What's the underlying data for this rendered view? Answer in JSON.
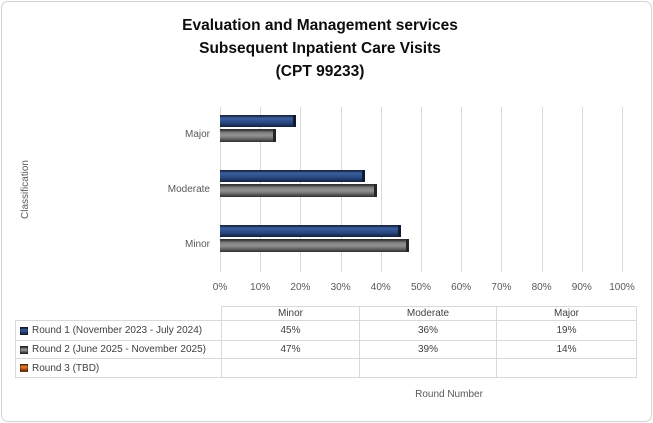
{
  "frame": {
    "background": "#ffffff",
    "border_color": "#d3d3d3"
  },
  "title": "Evaluation and Management services\nSubsequent Inpatient Care Visits\n(CPT 99233)",
  "chart_data": {
    "type": "bar",
    "orientation": "horizontal",
    "title": "Evaluation and Management services Subsequent Inpatient Care Visits (CPT 99233)",
    "xlabel": "Round Number",
    "ylabel": "Classification",
    "categories": [
      "Minor",
      "Moderate",
      "Major"
    ],
    "categories_top_to_bottom": [
      "Major",
      "Moderate",
      "Minor"
    ],
    "series": [
      {
        "name": "Round 1 (November 2023 - July 2024)",
        "color": "#2a4a85",
        "values": [
          45,
          36,
          19
        ]
      },
      {
        "name": "Round 2 (June 2025 - November 2025)",
        "color": "#7f7f7f",
        "values": [
          47,
          39,
          14
        ]
      },
      {
        "name": "Round 3 (TBD)",
        "color": "#c55a11",
        "values": [
          null,
          null,
          null
        ]
      }
    ],
    "value_suffix": "%",
    "xlim": [
      0,
      100
    ],
    "x_ticks": [
      "0%",
      "10%",
      "20%",
      "30%",
      "40%",
      "50%",
      "60%",
      "70%",
      "80%",
      "90%",
      "100%"
    ],
    "grid": true,
    "gridline_color": "#d9d9d9",
    "legend_position": "data-table-left-column",
    "data_table": {
      "header": [
        "",
        "Minor",
        "Moderate",
        "Major"
      ],
      "rows": [
        [
          "Round 1 (November 2023 - July 2024)",
          "45%",
          "36%",
          "19%"
        ],
        [
          "Round 2 (June 2025 - November 2025)",
          "47%",
          "39%",
          "14%"
        ],
        [
          "Round 3 (TBD)",
          "",
          "",
          ""
        ]
      ]
    }
  }
}
